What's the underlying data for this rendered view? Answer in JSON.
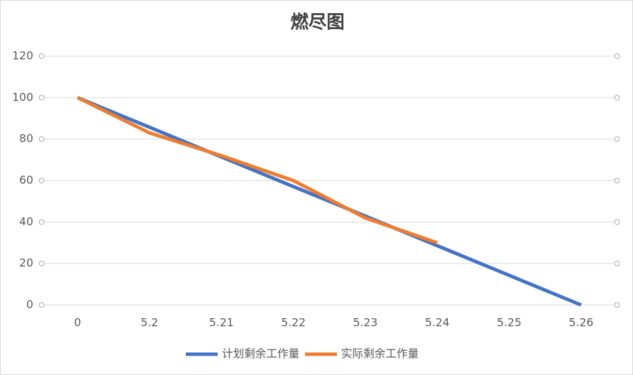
{
  "chart_data": {
    "type": "line",
    "title": "燃尽图",
    "categories": [
      "0",
      "5.2",
      "5.21",
      "5.22",
      "5.23",
      "5.24",
      "5.25",
      "5.26"
    ],
    "series": [
      {
        "name": "计划剩余工作量",
        "color": "#4472c4",
        "values": [
          100,
          85.7,
          71.4,
          57.1,
          42.9,
          28.6,
          14.3,
          0
        ]
      },
      {
        "name": "实际剩余工作量",
        "color": "#ed7d31",
        "values": [
          100,
          83,
          72,
          60,
          42,
          30,
          null,
          null
        ]
      }
    ],
    "ylim": [
      0,
      120
    ],
    "yticks": [
      0,
      20,
      40,
      60,
      80,
      100,
      120
    ],
    "grid": true,
    "legend": "bottom"
  }
}
